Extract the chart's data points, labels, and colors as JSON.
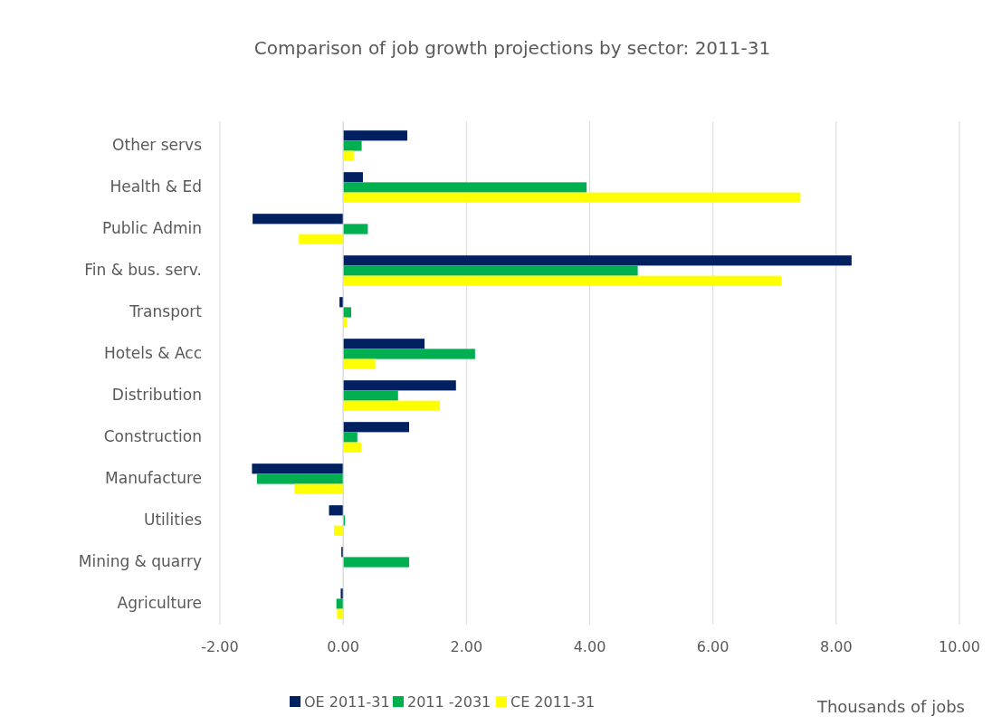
{
  "chart_data": {
    "type": "bar",
    "orientation": "horizontal",
    "title": "Comparison of job growth projections by sector: 2011-31",
    "xlabel": "Thousands of jobs",
    "categories": [
      "Other servs",
      "Health & Ed",
      "Public Admin",
      "Fin & bus. serv.",
      "Transport",
      "Hotels & Acc",
      "Distribution",
      "Construction",
      "Manufacture",
      "Utilities",
      "Mining & quarry",
      "Agriculture"
    ],
    "series": [
      {
        "name": "OE 2011-31",
        "color": "#002060",
        "values": [
          1.04,
          0.32,
          -1.47,
          8.25,
          -0.06,
          1.32,
          1.83,
          1.07,
          -1.48,
          -0.23,
          -0.03,
          -0.04
        ]
      },
      {
        "name": "2011 -2031",
        "color": "#00b050",
        "values": [
          0.3,
          3.95,
          0.4,
          4.78,
          0.13,
          2.14,
          0.89,
          0.23,
          -1.4,
          0.03,
          1.07,
          -0.11
        ]
      },
      {
        "name": "CE 2011-31",
        "color": "#ffff00",
        "values": [
          0.17,
          7.42,
          -0.72,
          7.11,
          0.06,
          0.52,
          1.57,
          0.29,
          -0.79,
          -0.15,
          null,
          -0.1
        ]
      }
    ],
    "xlim": [
      -2,
      10
    ],
    "xticks": [
      {
        "value": -2,
        "label": "-2.00"
      },
      {
        "value": 0,
        "label": "0.00"
      },
      {
        "value": 2,
        "label": "2.00"
      },
      {
        "value": 4,
        "label": "4.00"
      },
      {
        "value": 6,
        "label": "6.00"
      },
      {
        "value": 8,
        "label": "8.00"
      },
      {
        "value": 10,
        "label": "10.00"
      }
    ],
    "grid": "x",
    "legend": "bottom"
  }
}
